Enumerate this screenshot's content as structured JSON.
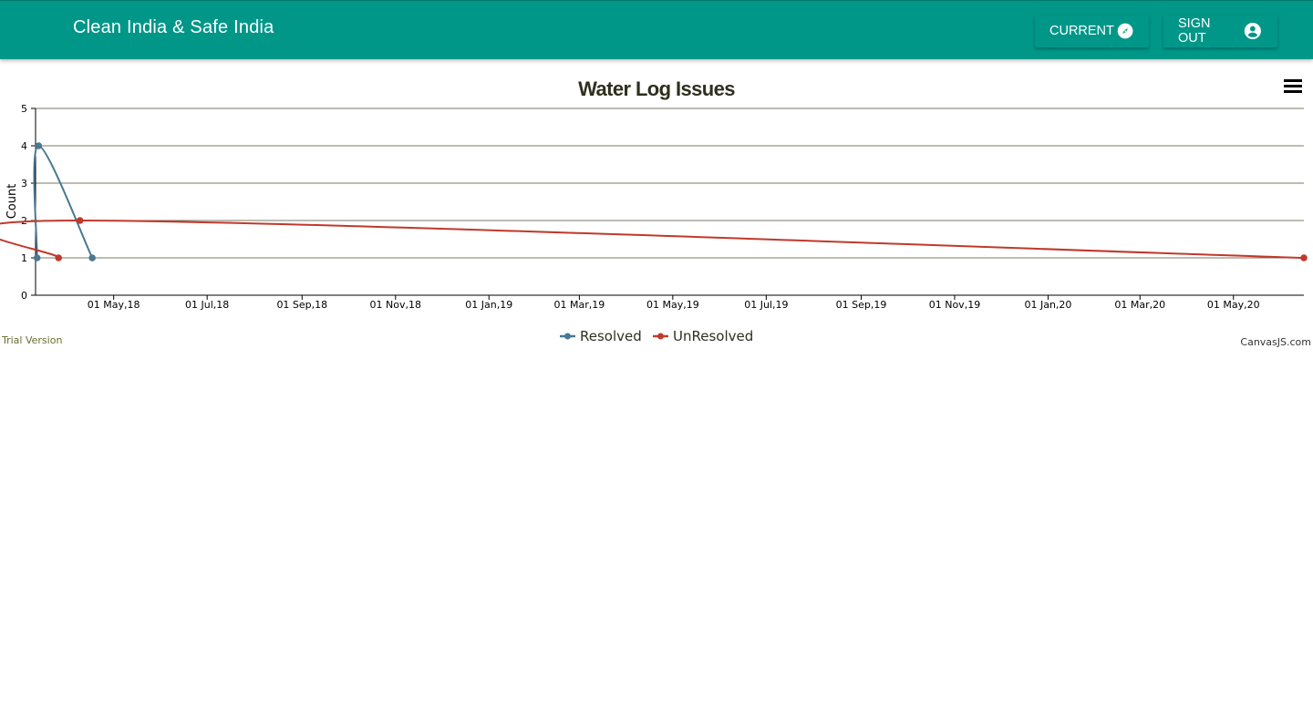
{
  "app": {
    "title": "Clean India & Safe India",
    "nav": {
      "current_label": "CURRENT",
      "current_icon": "compass-icon",
      "signout_label": "SIGN OUT",
      "signout_icon": "account-circle-icon"
    },
    "brand_color": "#009688"
  },
  "chart_data": {
    "type": "line",
    "title": "Water Log Issues",
    "ylabel": "Count",
    "xlabel": "",
    "ylim": [
      0,
      5
    ],
    "yticks": [
      "0",
      "1",
      "2",
      "3",
      "4",
      "5"
    ],
    "xlim": [
      "2018-03-11",
      "2020-06-16"
    ],
    "xticks": [
      {
        "date": "2018-05-01",
        "label": "01 May,18"
      },
      {
        "date": "2018-07-01",
        "label": "01 Jul,18"
      },
      {
        "date": "2018-09-01",
        "label": "01 Sep,18"
      },
      {
        "date": "2018-11-01",
        "label": "01 Nov,18"
      },
      {
        "date": "2019-01-01",
        "label": "01 Jan,19"
      },
      {
        "date": "2019-03-01",
        "label": "01 Mar,19"
      },
      {
        "date": "2019-05-01",
        "label": "01 May,19"
      },
      {
        "date": "2019-07-01",
        "label": "01 Jul,19"
      },
      {
        "date": "2019-09-01",
        "label": "01 Sep,19"
      },
      {
        "date": "2019-11-01",
        "label": "01 Nov,19"
      },
      {
        "date": "2020-01-01",
        "label": "01 Jan,20"
      },
      {
        "date": "2020-03-01",
        "label": "01 Mar,20"
      },
      {
        "date": "2020-05-01",
        "label": "01 May,20"
      }
    ],
    "grid": true,
    "legend_position": "bottom-center",
    "series": [
      {
        "name": "Resolved",
        "color": "#4a7890",
        "points": [
          {
            "x": "2018-03-12",
            "y": 1
          },
          {
            "x": "2018-03-13",
            "y": 4
          },
          {
            "x": "2018-04-17",
            "y": 1
          }
        ]
      },
      {
        "name": "UnResolved",
        "color": "#c0392b",
        "points": [
          {
            "x": "2018-03-26",
            "y": 1
          },
          {
            "x": "2018-04-09",
            "y": 2
          },
          {
            "x": "2020-06-16",
            "y": 1
          }
        ]
      }
    ],
    "watermark_left": "Trial Version",
    "watermark_right": "CanvasJS.com"
  }
}
